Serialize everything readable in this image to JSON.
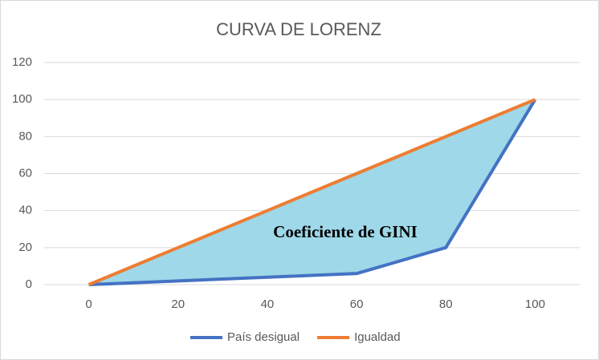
{
  "chart_data": {
    "type": "line",
    "title": "CURVA DE LORENZ",
    "x": [
      0,
      20,
      40,
      60,
      80,
      100
    ],
    "series": [
      {
        "name": "País desigual",
        "color": "#4472c4",
        "values": [
          0,
          2,
          4,
          6,
          20,
          100
        ]
      },
      {
        "name": "Igualdad",
        "color": "#ed7d31",
        "values": [
          0,
          20,
          40,
          60,
          80,
          100
        ]
      }
    ],
    "fill_between": {
      "color": "#9fd8e8",
      "label": "Coeficiente de GINI"
    },
    "xlim": [
      -10,
      110
    ],
    "xticks": [
      0,
      20,
      40,
      60,
      80,
      100
    ],
    "ylim": [
      0,
      120
    ],
    "yticks": [
      0,
      20,
      40,
      60,
      80,
      100,
      120
    ],
    "grid": true,
    "legend": "bottom"
  }
}
